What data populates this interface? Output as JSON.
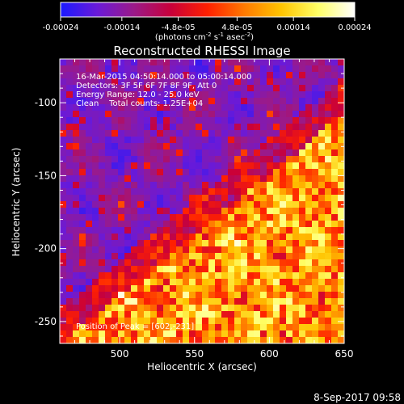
{
  "colorbar": {
    "tick_labels": [
      "-0.00024",
      "-0.00014",
      "-4.8e-05",
      "4.8e-05",
      "0.00014",
      "0.00024"
    ],
    "tick_values": [
      -0.00024,
      -0.00014,
      -4.8e-05,
      4.8e-05,
      0.00014,
      0.00024
    ],
    "units_line": {
      "open": "(photons cm",
      "sup1": "-2",
      "mid": " s",
      "sup2": "-1",
      "mid2": " asec",
      "sup3": "-2",
      "close": ")"
    },
    "colors": [
      "#1a1aff",
      "#6a1ad8",
      "#9b1a88",
      "#c8003a",
      "#ff2000",
      "#ff7a00",
      "#ffc400",
      "#ffff66",
      "#ffffff"
    ]
  },
  "image": {
    "title": "Reconstructed RHESSI Image",
    "info_lines": [
      "16-Mar-2015 04:50:14.000 to 05:00:14.000",
      "Detectors: 3F 5F 6F 7F 8F 9F, Att 0",
      "Energy Range: 12.0 - 25.0 keV",
      "Clean    Total counts: 1.25E+04"
    ],
    "peak_text": "Position of Peak = [602,-231]",
    "xlabel": "Heliocentric X (arcsec)",
    "ylabel": "Heliocentric Y (arcsec)",
    "x_ticks": [
      500,
      550,
      600,
      650
    ],
    "y_ticks": [
      -100,
      -150,
      -200,
      -250
    ],
    "xlim": [
      460,
      650
    ],
    "ylim": [
      -265,
      -70
    ]
  },
  "footer": {
    "timestamp": "8-Sep-2017 09:58"
  }
}
